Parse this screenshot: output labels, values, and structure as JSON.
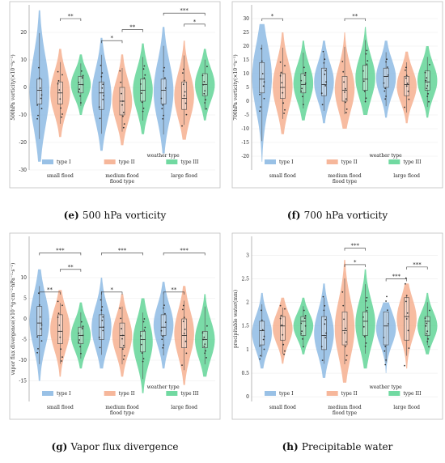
{
  "chart_data": [
    {
      "panel": "e",
      "caption_letter": "(e)",
      "caption_text": "500 hPa vorticity",
      "type": "violin",
      "ylabel": "500hPa vorticity(×10⁻⁶s⁻¹)",
      "xlabel": "flood type",
      "ylim": [
        -30,
        30
      ],
      "yticks": [
        -30,
        -20,
        -10,
        0,
        10,
        20
      ],
      "groups": [
        "small flood",
        "medium flood",
        "large flood"
      ],
      "legend_title": "weather type",
      "series": [
        {
          "name": "type I",
          "color": "#7fb1e0",
          "medians": [
            -1,
            -2,
            -1
          ],
          "q1": [
            -6,
            -8,
            -6
          ],
          "q3": [
            3,
            2,
            3
          ],
          "min": [
            -27,
            -23,
            -24
          ],
          "max": [
            28,
            18,
            22
          ]
        },
        {
          "name": "type II",
          "color": "#f4a582",
          "medians": [
            -2,
            -5,
            -4
          ],
          "q1": [
            -6,
            -10,
            -8
          ],
          "q3": [
            2,
            0,
            2
          ],
          "min": [
            -18,
            -21,
            -19
          ],
          "max": [
            14,
            12,
            17
          ]
        },
        {
          "name": "type III",
          "color": "#4ecf8a",
          "medians": [
            1,
            -1,
            1
          ],
          "q1": [
            -2,
            -5,
            -3
          ],
          "q3": [
            4,
            3,
            5
          ],
          "min": [
            -10,
            -17,
            -12
          ],
          "max": [
            12,
            16,
            14
          ]
        }
      ],
      "significance": [
        {
          "group": 0,
          "from": 1,
          "to": 2,
          "label": "**",
          "y": 25
        },
        {
          "group": 1,
          "from": 0,
          "to": 1,
          "label": "*",
          "y": 17
        },
        {
          "group": 1,
          "from": 1,
          "to": 2,
          "label": "**",
          "y": 21
        },
        {
          "group": 2,
          "from": 0,
          "to": 2,
          "label": "***",
          "y": 27
        },
        {
          "group": 2,
          "from": 1,
          "to": 2,
          "label": "*",
          "y": 23
        }
      ]
    },
    {
      "panel": "f",
      "caption_letter": "(f)",
      "caption_text": "700 hPa vorticity",
      "type": "violin",
      "ylabel": "700hPa vorticity(×10⁻⁶s⁻¹)",
      "xlabel": "flood type",
      "ylim": [
        -25,
        35
      ],
      "yticks": [
        -20,
        -15,
        -10,
        -5,
        0,
        5,
        10,
        15,
        20,
        25,
        30
      ],
      "groups": [
        "small flood",
        "medium flood",
        "large flood"
      ],
      "legend_title": "weather type",
      "series": [
        {
          "name": "type I",
          "color": "#7fb1e0",
          "medians": [
            8,
            6,
            9
          ],
          "q1": [
            3,
            2,
            5
          ],
          "q3": [
            14,
            12,
            12
          ],
          "min": [
            -22,
            -8,
            -6
          ],
          "max": [
            28,
            22,
            22
          ]
        },
        {
          "name": "type II",
          "color": "#f4a582",
          "medians": [
            5,
            4,
            6
          ],
          "q1": [
            1,
            0,
            2
          ],
          "q3": [
            10,
            9,
            9
          ],
          "min": [
            -12,
            -10,
            -8
          ],
          "max": [
            25,
            25,
            18
          ]
        },
        {
          "name": "type III",
          "color": "#4ecf8a",
          "medians": [
            6,
            8,
            7
          ],
          "q1": [
            3,
            4,
            4
          ],
          "q3": [
            10,
            13,
            11
          ],
          "min": [
            -7,
            -5,
            -6
          ],
          "max": [
            22,
            27,
            20
          ]
        }
      ],
      "significance": [
        {
          "group": 0,
          "from": 0,
          "to": 1,
          "label": "*",
          "y": 30
        },
        {
          "group": 1,
          "from": 1,
          "to": 2,
          "label": "**",
          "y": 30
        }
      ]
    },
    {
      "panel": "g",
      "caption_letter": "(g)",
      "caption_text": "Vapor flux divergence",
      "type": "violin",
      "ylabel": "vapor flux divergence(×10⁻⁸g·cm⁻²·hPa⁻¹·s⁻¹)",
      "xlabel": "flood type",
      "ylim": [
        -20,
        20
      ],
      "yticks": [
        -15,
        -10,
        -5,
        0,
        5,
        10
      ],
      "groups": [
        "small flood",
        "medium flood",
        "large flood"
      ],
      "legend_title": "weather type",
      "series": [
        {
          "name": "type I",
          "color": "#7fb1e0",
          "medians": [
            -1,
            -2,
            -2
          ],
          "q1": [
            -4,
            -5,
            -4
          ],
          "q3": [
            3,
            1,
            1
          ],
          "min": [
            -15,
            -12,
            -12
          ],
          "max": [
            12,
            10,
            9
          ]
        },
        {
          "name": "type II",
          "color": "#f4a582",
          "medians": [
            -3,
            -4,
            -4
          ],
          "q1": [
            -6,
            -7,
            -7
          ],
          "q3": [
            1,
            -1,
            0
          ],
          "min": [
            -14,
            -14,
            -16
          ],
          "max": [
            7,
            6,
            8
          ]
        },
        {
          "name": "type III",
          "color": "#4ecf8a",
          "medians": [
            -4,
            -5,
            -5
          ],
          "q1": [
            -6,
            -8,
            -7
          ],
          "q3": [
            -2,
            -3,
            -3
          ],
          "min": [
            -12,
            -18,
            -14
          ],
          "max": [
            4,
            5,
            6
          ]
        }
      ],
      "significance": [
        {
          "group": 0,
          "from": 0,
          "to": 2,
          "label": "***",
          "y": 16
        },
        {
          "group": 0,
          "from": 1,
          "to": 2,
          "label": "**",
          "y": 12
        },
        {
          "group": 0,
          "from": 0,
          "to": 1,
          "label": "**",
          "y": 6.5
        },
        {
          "group": 1,
          "from": 0,
          "to": 2,
          "label": "***",
          "y": 16
        },
        {
          "group": 1,
          "from": 0,
          "to": 1,
          "label": "*",
          "y": 6.5
        },
        {
          "group": 2,
          "from": 0,
          "to": 2,
          "label": "***",
          "y": 16
        },
        {
          "group": 2,
          "from": 0,
          "to": 1,
          "label": "**",
          "y": 6.5
        }
      ]
    },
    {
      "panel": "h",
      "caption_letter": "(h)",
      "caption_text": "Precipitable water",
      "type": "violin",
      "ylabel": "precipitable water(mm)",
      "xlabel": "flood type",
      "ylim": [
        -0.1,
        3.4
      ],
      "yticks": [
        0.0,
        0.5,
        1.0,
        1.5,
        2.0,
        2.5,
        3.0
      ],
      "groups": [
        "small flood",
        "medium flood",
        "large flood"
      ],
      "legend_title": "weather type",
      "series": [
        {
          "name": "type I",
          "color": "#7fb1e0",
          "medians": [
            1.4,
            1.3,
            1.5
          ],
          "q1": [
            1.1,
            1.0,
            1.1
          ],
          "q3": [
            1.6,
            1.7,
            1.8
          ],
          "min": [
            0.6,
            0.4,
            0.5
          ],
          "max": [
            2.2,
            2.4,
            2.0
          ]
        },
        {
          "name": "type II",
          "color": "#f4a582",
          "medians": [
            1.5,
            1.4,
            1.7
          ],
          "q1": [
            1.2,
            1.1,
            1.2
          ],
          "q3": [
            1.7,
            1.8,
            2.1
          ],
          "min": [
            0.7,
            0.3,
            0.6
          ],
          "max": [
            2.1,
            2.9,
            2.4
          ]
        },
        {
          "name": "type III",
          "color": "#4ecf8a",
          "medians": [
            1.6,
            1.6,
            1.6
          ],
          "q1": [
            1.3,
            1.3,
            1.3
          ],
          "q3": [
            1.7,
            1.8,
            1.7
          ],
          "min": [
            0.9,
            0.6,
            0.9
          ],
          "max": [
            2.1,
            2.7,
            2.2
          ]
        }
      ],
      "significance": [
        {
          "group": 1,
          "from": 1,
          "to": 2,
          "label": "***",
          "y": 3.15
        },
        {
          "group": 1,
          "from": 1,
          "to": 2,
          "label": "*",
          "y": 2.8
        },
        {
          "group": 2,
          "from": 0,
          "to": 1,
          "label": "***",
          "y": 2.5
        },
        {
          "group": 2,
          "from": 1,
          "to": 2,
          "label": "***",
          "y": 2.75
        }
      ]
    }
  ]
}
